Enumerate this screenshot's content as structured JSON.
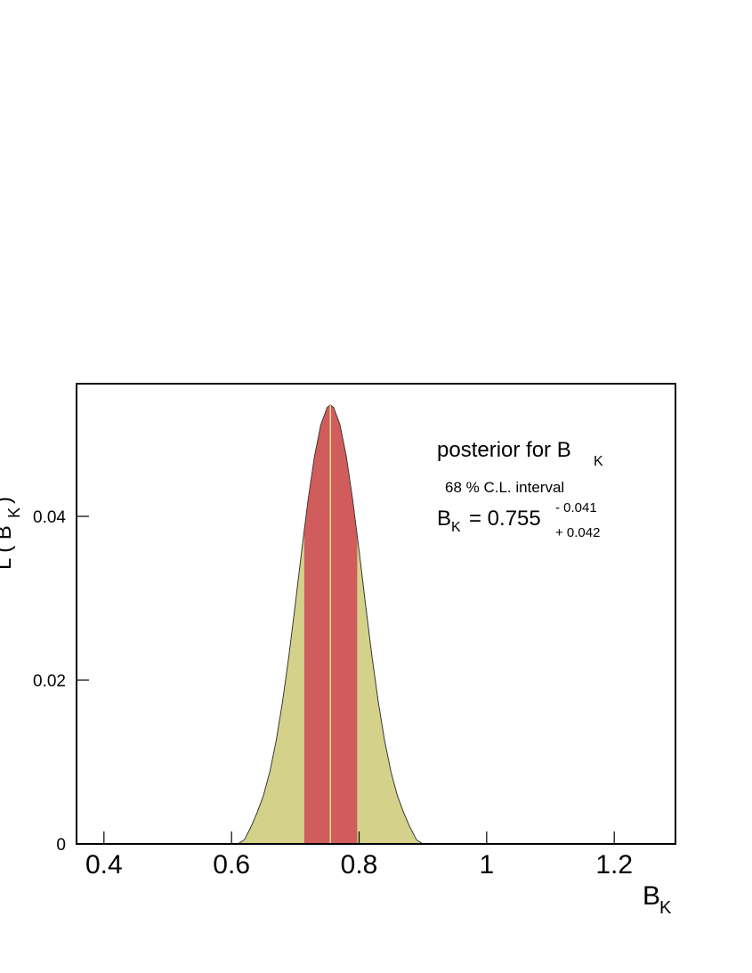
{
  "chart_data": {
    "type": "area",
    "x": [
      0.61,
      0.62,
      0.63,
      0.64,
      0.65,
      0.66,
      0.67,
      0.68,
      0.69,
      0.7,
      0.71,
      0.72,
      0.73,
      0.74,
      0.75,
      0.755,
      0.76,
      0.77,
      0.78,
      0.79,
      0.8,
      0.81,
      0.82,
      0.83,
      0.84,
      0.85,
      0.86,
      0.87,
      0.88,
      0.89,
      0.9
    ],
    "values": [
      0,
      0.0005,
      0.002,
      0.0038,
      0.0059,
      0.0088,
      0.0126,
      0.0174,
      0.023,
      0.0293,
      0.0358,
      0.042,
      0.0473,
      0.0512,
      0.0533,
      0.0536,
      0.0533,
      0.0512,
      0.0473,
      0.042,
      0.0358,
      0.0293,
      0.023,
      0.0174,
      0.0126,
      0.0088,
      0.0059,
      0.0038,
      0.002,
      0.0005,
      0
    ],
    "color": "#d4d28a",
    "interval": [
      0.714,
      0.797
    ],
    "interval_color": "#d05c5c",
    "central_value": 0.755,
    "central_color": "#f0e08a",
    "xlim": [
      0.357,
      1.296
    ],
    "xticks": [
      0.4,
      0.6,
      0.8,
      1,
      1.2
    ],
    "ylim": [
      0,
      0.0562
    ],
    "yticks": [
      0,
      0.02,
      0.04
    ],
    "x_label": {
      "main": "B",
      "sub": "K"
    },
    "y_label": {
      "main": "L ( B",
      "sub": "K",
      "end": ")"
    },
    "annotations": {
      "title_main": "posterior for  B",
      "title_sub": "K",
      "interval_text": "68 % C.L. interval",
      "result_main": "B",
      "result_sub": "K",
      "result_value": "= 0.755",
      "minus": "- 0.041",
      "plus": "+ 0.042"
    }
  }
}
